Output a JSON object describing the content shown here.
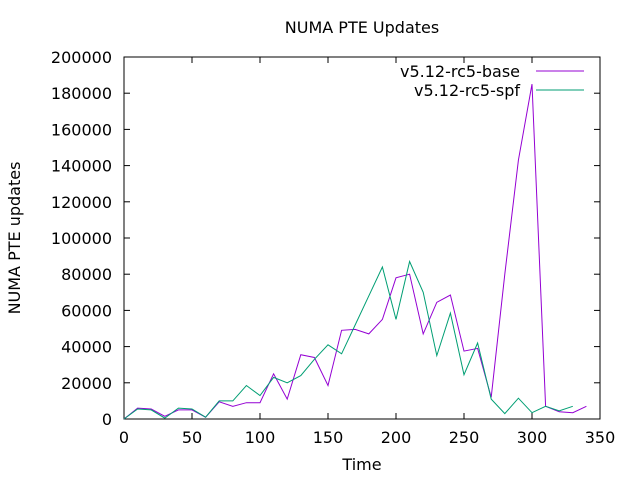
{
  "chart_data": {
    "type": "line",
    "title": "NUMA PTE Updates",
    "xlabel": "Time",
    "ylabel": "NUMA PTE updates",
    "xlim": [
      0,
      350
    ],
    "ylim": [
      0,
      200000
    ],
    "xticks": [
      0,
      50,
      100,
      150,
      200,
      250,
      300,
      350
    ],
    "yticks": [
      0,
      20000,
      40000,
      60000,
      80000,
      100000,
      120000,
      140000,
      160000,
      180000,
      200000
    ],
    "grid": false,
    "legend_position": "top-right",
    "series": [
      {
        "name": "v5.12-rc5-base",
        "color": "#9400d3",
        "points": [
          [
            0,
            0
          ],
          [
            10,
            6000
          ],
          [
            20,
            5500
          ],
          [
            30,
            1500
          ],
          [
            40,
            5000
          ],
          [
            50,
            5000
          ],
          [
            60,
            1000
          ],
          [
            70,
            9500
          ],
          [
            80,
            7000
          ],
          [
            90,
            9000
          ],
          [
            100,
            9000
          ],
          [
            110,
            25000
          ],
          [
            120,
            11000
          ],
          [
            130,
            35500
          ],
          [
            140,
            34000
          ],
          [
            150,
            18500
          ],
          [
            160,
            49000
          ],
          [
            170,
            49500
          ],
          [
            180,
            47000
          ],
          [
            190,
            55000
          ],
          [
            200,
            78000
          ],
          [
            210,
            80000
          ],
          [
            220,
            47000
          ],
          [
            230,
            64500
          ],
          [
            240,
            68500
          ],
          [
            250,
            37500
          ],
          [
            260,
            39000
          ],
          [
            270,
            12000
          ],
          [
            280,
            80000
          ],
          [
            290,
            143000
          ],
          [
            300,
            185000
          ],
          [
            310,
            7000
          ],
          [
            320,
            4000
          ],
          [
            330,
            3500
          ],
          [
            340,
            7000
          ]
        ]
      },
      {
        "name": "v5.12-rc5-spf",
        "color": "#009e73",
        "points": [
          [
            0,
            0
          ],
          [
            10,
            5500
          ],
          [
            20,
            5000
          ],
          [
            30,
            500
          ],
          [
            40,
            6000
          ],
          [
            50,
            5500
          ],
          [
            60,
            1000
          ],
          [
            70,
            10000
          ],
          [
            80,
            10000
          ],
          [
            90,
            18500
          ],
          [
            100,
            13000
          ],
          [
            110,
            23000
          ],
          [
            120,
            20000
          ],
          [
            130,
            24000
          ],
          [
            140,
            33000
          ],
          [
            150,
            41000
          ],
          [
            160,
            36000
          ],
          [
            170,
            52000
          ],
          [
            180,
            68000
          ],
          [
            190,
            84000
          ],
          [
            200,
            55000
          ],
          [
            210,
            87000
          ],
          [
            220,
            70000
          ],
          [
            230,
            35000
          ],
          [
            240,
            58500
          ],
          [
            250,
            24500
          ],
          [
            260,
            42000
          ],
          [
            270,
            11000
          ],
          [
            280,
            3000
          ],
          [
            290,
            11500
          ],
          [
            300,
            3500
          ],
          [
            310,
            7000
          ],
          [
            320,
            4500
          ],
          [
            330,
            7000
          ]
        ]
      }
    ]
  }
}
